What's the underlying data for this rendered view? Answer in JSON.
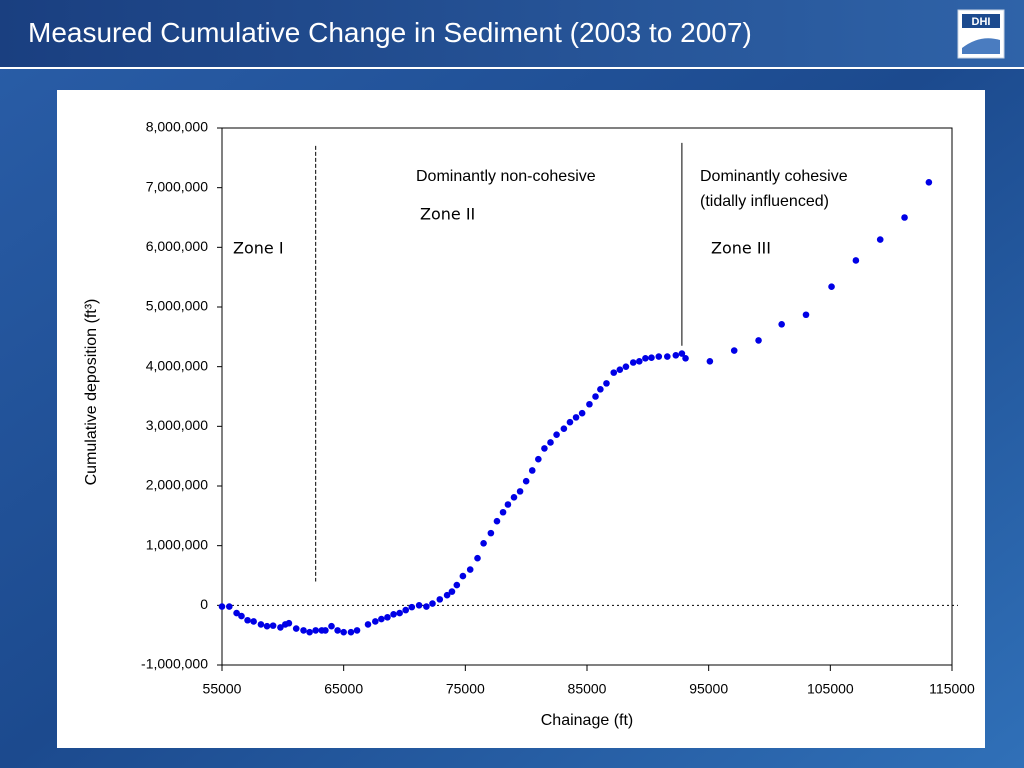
{
  "header": {
    "title": "Measured Cumulative Change in Sediment (2003 to 2007)",
    "logo": "DHI"
  },
  "chart_data": {
    "type": "scatter",
    "xlabel": "Chainage (ft)",
    "ylabel": "Cumulative deposition (ft³)",
    "color": "#0000e6",
    "xlim": [
      55000,
      115000
    ],
    "xticks": [
      55000,
      65000,
      75000,
      85000,
      95000,
      105000,
      115000
    ],
    "ylim": [
      -1000000,
      8000000
    ],
    "yticks": [
      {
        "value": -1000000,
        "label": "-1,000,000"
      },
      0,
      {
        "value": 1000000,
        "label": "1,000,000"
      },
      {
        "value": 2000000,
        "label": "2,000,000"
      },
      {
        "value": 3000000,
        "label": "3,000,000"
      },
      {
        "value": 4000000,
        "label": "4,000,000"
      },
      {
        "value": 5000000,
        "label": "5,000,000"
      },
      {
        "value": 6000000,
        "label": "6,000,000"
      },
      {
        "value": 7000000,
        "label": "7,000,000"
      },
      {
        "value": 8000000,
        "label": "8,000,000"
      }
    ],
    "zero_line": true,
    "reference_lines": [
      {
        "x": 62700,
        "y": [
          7700000,
          400000
        ],
        "style": "dashed"
      },
      {
        "x": 92800,
        "y": [
          7750000,
          4350000
        ],
        "style": "solid"
      }
    ],
    "annotations": [
      "Dominantly non-cohesive",
      "Zone II",
      "Zone I",
      "Dominantly cohesive",
      "(tidally influenced)",
      "Zone III"
    ],
    "x": [
      55000,
      55600,
      56200,
      56600,
      57100,
      57600,
      58200,
      58700,
      59200,
      59800,
      60200,
      60500,
      61100,
      61700,
      62200,
      62700,
      63200,
      63500,
      64000,
      64500,
      65000,
      65600,
      66100,
      67000,
      67600,
      68100,
      68600,
      69100,
      69600,
      70100,
      70600,
      71200,
      71800,
      72300,
      72900,
      73500,
      73900,
      74300,
      74800,
      75400,
      76000,
      76500,
      77100,
      77600,
      78100,
      78500,
      79000,
      79500,
      80000,
      80500,
      81000,
      81500,
      82000,
      82500,
      83100,
      83600,
      84100,
      84600,
      85200,
      85700,
      86100,
      86600,
      87200,
      87700,
      88200,
      88800,
      89300,
      89800,
      90300,
      90900,
      91600,
      92300,
      92800,
      93100,
      95100,
      97100,
      99100,
      101000,
      103000,
      105100,
      107100,
      109100,
      111100,
      113100
    ],
    "values": [
      -20000,
      -20000,
      -130000,
      -180000,
      -250000,
      -270000,
      -320000,
      -350000,
      -340000,
      -370000,
      -320000,
      -300000,
      -390000,
      -420000,
      -450000,
      -420000,
      -420000,
      -420000,
      -350000,
      -420000,
      -450000,
      -450000,
      -420000,
      -320000,
      -270000,
      -230000,
      -200000,
      -150000,
      -130000,
      -80000,
      -30000,
      0,
      -20000,
      30000,
      100000,
      170000,
      230000,
      340000,
      490000,
      600000,
      790000,
      1040000,
      1210000,
      1410000,
      1560000,
      1690000,
      1810000,
      1910000,
      2080000,
      2260000,
      2450000,
      2630000,
      2730000,
      2860000,
      2960000,
      3070000,
      3150000,
      3220000,
      3370000,
      3500000,
      3620000,
      3720000,
      3900000,
      3950000,
      4000000,
      4070000,
      4090000,
      4140000,
      4150000,
      4170000,
      4170000,
      4190000,
      4220000,
      4140000,
      4090000,
      4270000,
      4440000,
      4710000,
      4870000,
      5340000,
      5780000,
      6130000,
      6500000,
      7090000
    ]
  }
}
